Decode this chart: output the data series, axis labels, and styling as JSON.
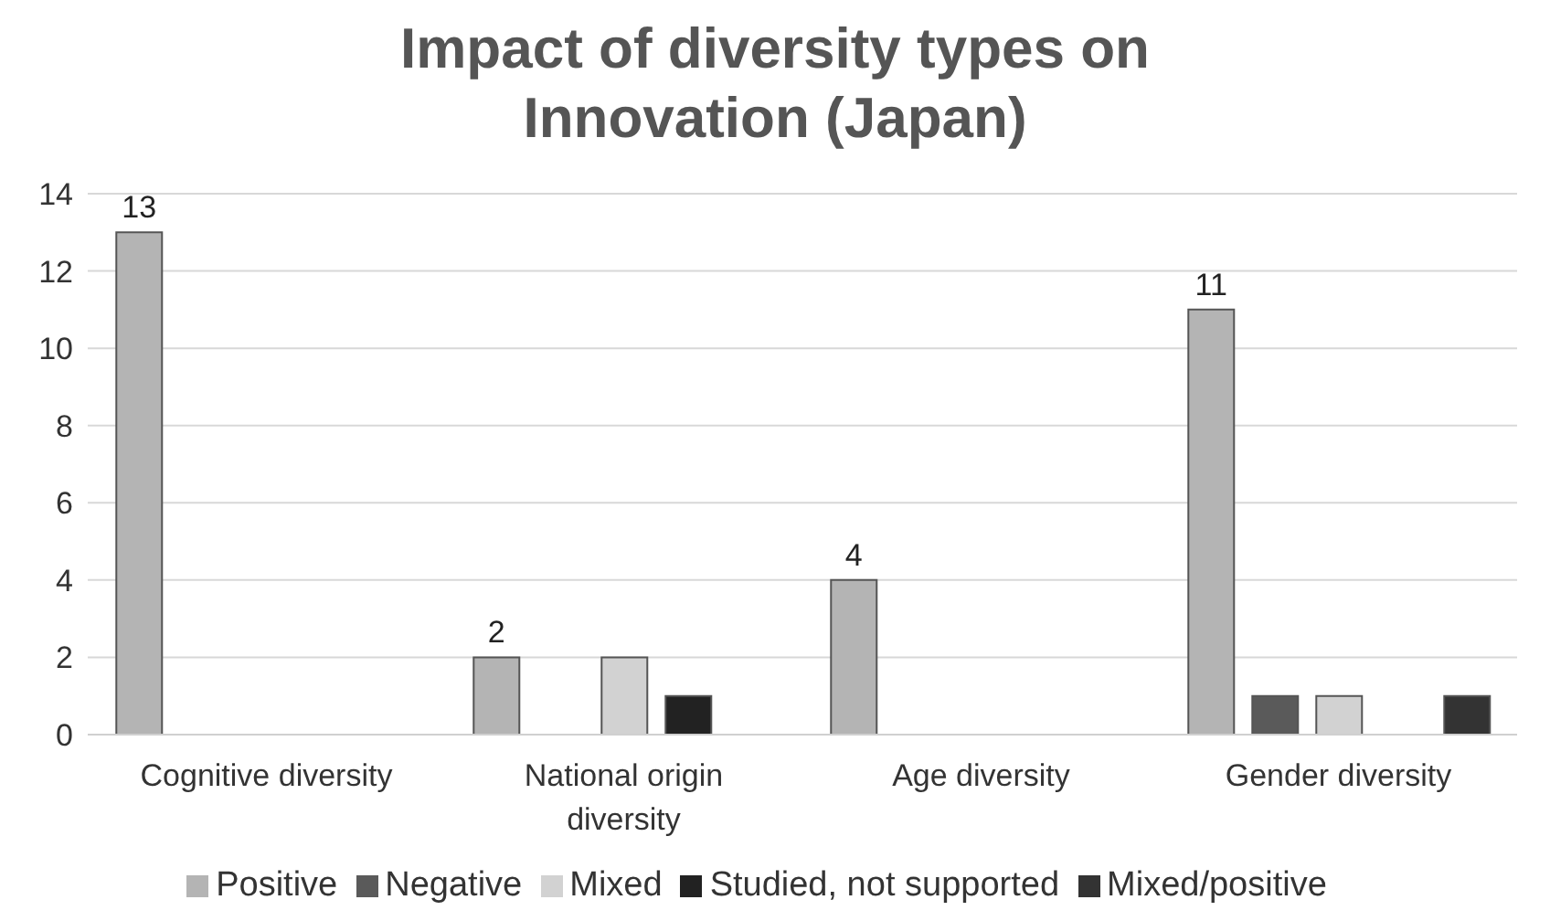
{
  "chart_data": {
    "type": "bar",
    "title": "Impact of diversity types on Innovation (Japan)",
    "categories": [
      "Cognitive diversity",
      "National origin diversity",
      "Age diversity",
      "Gender diversity"
    ],
    "series": [
      {
        "name": "Positive",
        "color": "#b4b4b4",
        "values": [
          13,
          2,
          4,
          11
        ],
        "value_labels": [
          "13",
          "2",
          "4",
          "11"
        ]
      },
      {
        "name": "Negative",
        "color": "#5a5a5a",
        "values": [
          0,
          0,
          0,
          1
        ]
      },
      {
        "name": "Mixed",
        "color": "#d2d2d2",
        "values": [
          0,
          2,
          0,
          1
        ]
      },
      {
        "name": "Studied, not supported",
        "color": "#222222",
        "values": [
          0,
          1,
          0,
          0
        ]
      },
      {
        "name": "Mixed/positive",
        "color": "#333333",
        "values": [
          0,
          0,
          0,
          1
        ]
      }
    ],
    "ylim": [
      0,
      14
    ],
    "yticks": [
      0,
      2,
      4,
      6,
      8,
      10,
      12,
      14
    ],
    "grid": "y",
    "legend": "bottom"
  }
}
